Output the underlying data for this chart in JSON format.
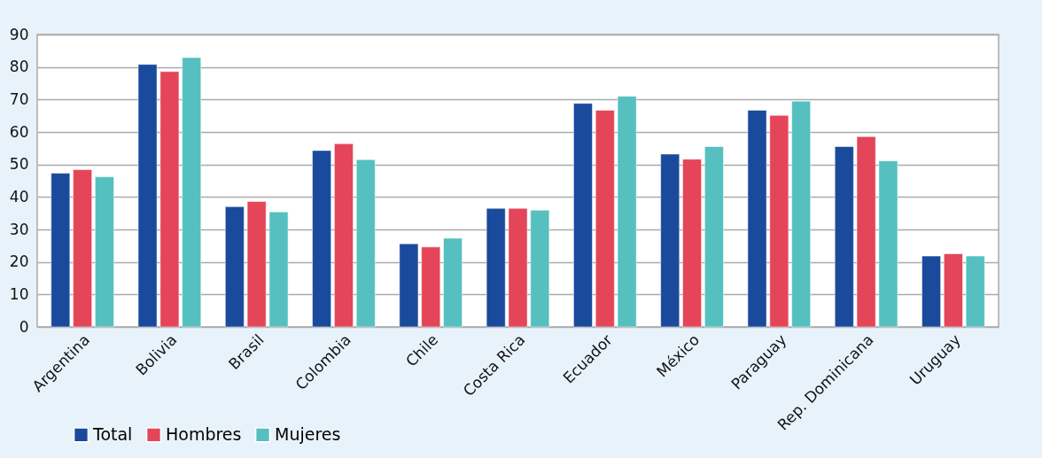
{
  "chart_data": {
    "type": "bar",
    "categories": [
      "Argentina",
      "Bolivia",
      "Brasil",
      "Colombia",
      "Chile",
      "Costa Rica",
      "Ecuador",
      "México",
      "Paraguay",
      "Rep. Dominicana",
      "Uruguay"
    ],
    "series": [
      {
        "name": "Total",
        "color": "#1a4a9c",
        "values": [
          47.3,
          80.8,
          37.0,
          54.3,
          25.6,
          36.5,
          68.8,
          53.2,
          66.7,
          55.5,
          21.8
        ]
      },
      {
        "name": "Hombres",
        "color": "#e44558",
        "values": [
          48.4,
          78.6,
          38.6,
          56.4,
          24.6,
          36.5,
          66.7,
          51.6,
          65.1,
          58.6,
          22.5
        ]
      },
      {
        "name": "Mujeres",
        "color": "#55c0bf",
        "values": [
          46.2,
          82.9,
          35.4,
          51.5,
          27.3,
          35.9,
          71.0,
          55.5,
          69.5,
          51.1,
          21.8
        ]
      }
    ],
    "ylim": [
      0,
      90
    ],
    "yticks": [
      0,
      10,
      20,
      30,
      40,
      50,
      60,
      70,
      80,
      90
    ],
    "grid": "y",
    "legend": "bottom left"
  }
}
